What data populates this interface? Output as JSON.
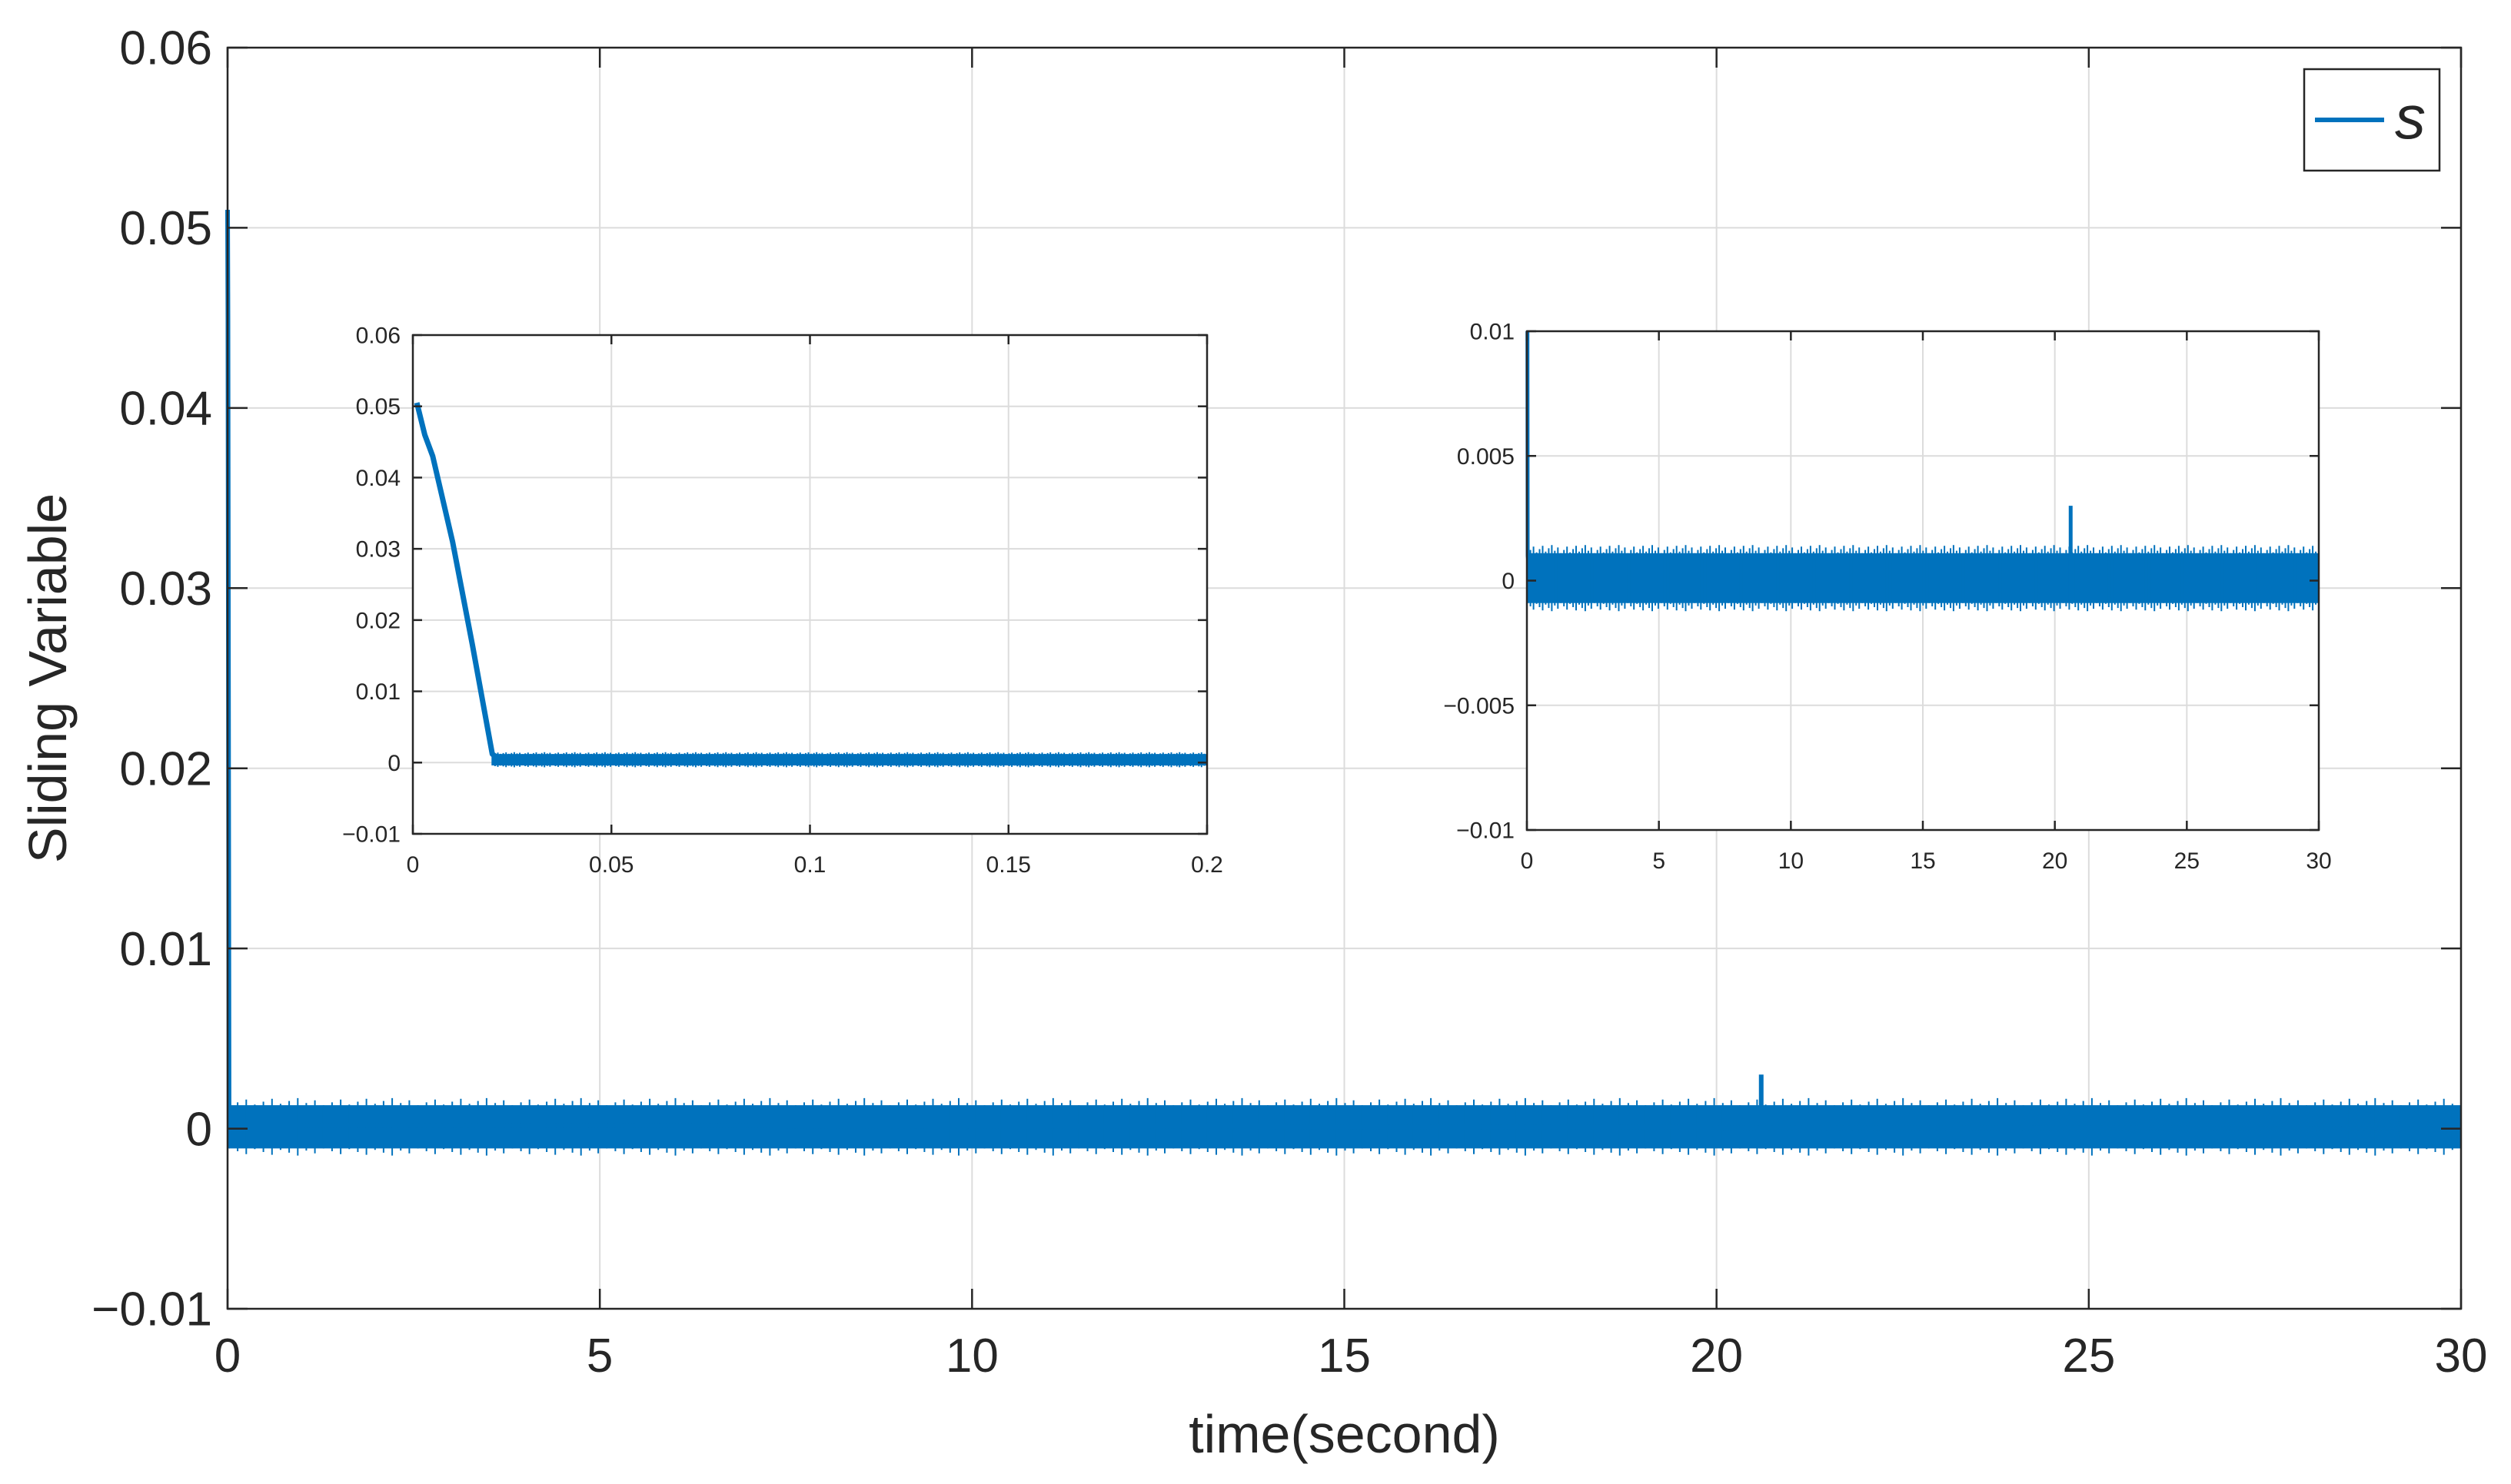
{
  "chart_data": [
    {
      "id": "main",
      "type": "line",
      "xlabel": "time(second)",
      "ylabel": "Sliding Variable",
      "xlim": [
        0,
        30
      ],
      "ylim": [
        -0.01,
        0.06
      ],
      "xticks": [
        0,
        5,
        10,
        15,
        20,
        25,
        30
      ],
      "xtick_labels": [
        "0",
        "5",
        "10",
        "15",
        "20",
        "25",
        "30"
      ],
      "yticks": [
        -0.01,
        0,
        0.01,
        0.02,
        0.03,
        0.04,
        0.05,
        0.06
      ],
      "ytick_labels": [
        "−0.01",
        "0",
        "0.01",
        "0.02",
        "0.03",
        "0.04",
        "0.05",
        "0.06"
      ],
      "grid": true,
      "legend": {
        "position": "top-right",
        "entries": [
          "s"
        ]
      },
      "series": [
        {
          "name": "s",
          "color": "#0072bd",
          "x": [
            0,
            0.005,
            0.02,
            0.03,
            0.2,
            30
          ],
          "y": [
            0.051,
            0.045,
            0.0005,
            0.0004,
            0.0002,
            0.0
          ],
          "chattering_band": {
            "x_from": 0.02,
            "x_to": 30,
            "y_min": -0.0011,
            "y_max": 0.0013
          },
          "spike": {
            "x": 20.6,
            "y": 0.003
          }
        }
      ]
    },
    {
      "id": "inset-start",
      "type": "line",
      "xlim": [
        0,
        0.2
      ],
      "ylim": [
        -0.01,
        0.06
      ],
      "xticks": [
        0,
        0.05,
        0.1,
        0.15,
        0.2
      ],
      "xtick_labels": [
        "0",
        "0.05",
        "0.1",
        "0.15",
        "0.2"
      ],
      "yticks": [
        -0.01,
        0,
        0.01,
        0.02,
        0.03,
        0.04,
        0.05,
        0.06
      ],
      "ytick_labels": [
        "−0.01",
        "0",
        "0.01",
        "0.02",
        "0.03",
        "0.04",
        "0.05",
        "0.06"
      ],
      "grid": true,
      "series": [
        {
          "color": "#0072bd",
          "x": [
            0.001,
            0.003,
            0.005,
            0.01,
            0.015,
            0.02,
            0.021,
            0.05,
            0.1,
            0.15,
            0.2
          ],
          "y": [
            0.0505,
            0.046,
            0.043,
            0.031,
            0.0165,
            0.0012,
            0.0008,
            0.0006,
            0.0004,
            0.0003,
            0.0002
          ],
          "chattering_band": {
            "x_from": 0.02,
            "x_to": 0.2,
            "y_min": -0.0004,
            "y_max": 0.0012
          }
        }
      ]
    },
    {
      "id": "inset-full",
      "type": "line",
      "xlim": [
        0,
        30
      ],
      "ylim": [
        -0.01,
        0.01
      ],
      "xticks": [
        0,
        5,
        10,
        15,
        20,
        25,
        30
      ],
      "xtick_labels": [
        "0",
        "5",
        "10",
        "15",
        "20",
        "25",
        "30"
      ],
      "yticks": [
        -0.01,
        -0.005,
        0,
        0.005,
        0.01
      ],
      "ytick_labels": [
        "−0.01",
        "−0.005",
        "0",
        "0.005",
        "0.01"
      ],
      "grid": true,
      "series": [
        {
          "color": "#0072bd",
          "x": [
            0.02,
            0.03,
            0.05
          ],
          "y": [
            0.01,
            0.001,
            0.0008
          ],
          "chattering_band": {
            "x_from": 0.02,
            "x_to": 30,
            "y_min": -0.0009,
            "y_max": 0.0011
          },
          "spike": {
            "x": 20.6,
            "y": 0.003
          }
        }
      ]
    }
  ]
}
